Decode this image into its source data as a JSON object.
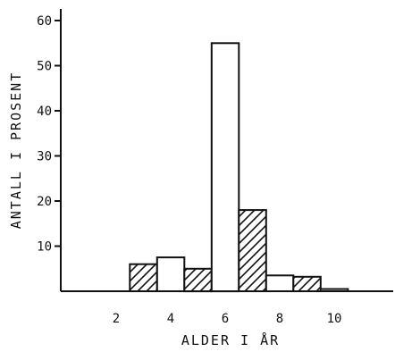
{
  "chart_data": {
    "type": "bar",
    "title": "",
    "xlabel": "ALDER I ÅR",
    "ylabel": "ANTALL I PROSENT",
    "xlim": [
      0,
      12
    ],
    "ylim": [
      0,
      62
    ],
    "x_ticks": [
      "2",
      "4",
      "6",
      "8",
      "10"
    ],
    "y_ticks": [
      "10",
      "20",
      "30",
      "40",
      "50",
      "60"
    ],
    "grid": false,
    "bin_width": 1,
    "bars": [
      {
        "x_start": 2.5,
        "value": 6,
        "pattern": "hatched"
      },
      {
        "x_start": 3.5,
        "value": 7.5,
        "pattern": "plain"
      },
      {
        "x_start": 4.5,
        "value": 5,
        "pattern": "hatched"
      },
      {
        "x_start": 5.5,
        "value": 55,
        "pattern": "plain"
      },
      {
        "x_start": 6.5,
        "value": 18,
        "pattern": "hatched"
      },
      {
        "x_start": 7.5,
        "value": 3.5,
        "pattern": "plain"
      },
      {
        "x_start": 8.5,
        "value": 3.2,
        "pattern": "hatched"
      },
      {
        "x_start": 9.5,
        "value": 0.5,
        "pattern": "plain"
      }
    ],
    "colors": {
      "ink": "#111111",
      "background": "#ffffff"
    }
  }
}
